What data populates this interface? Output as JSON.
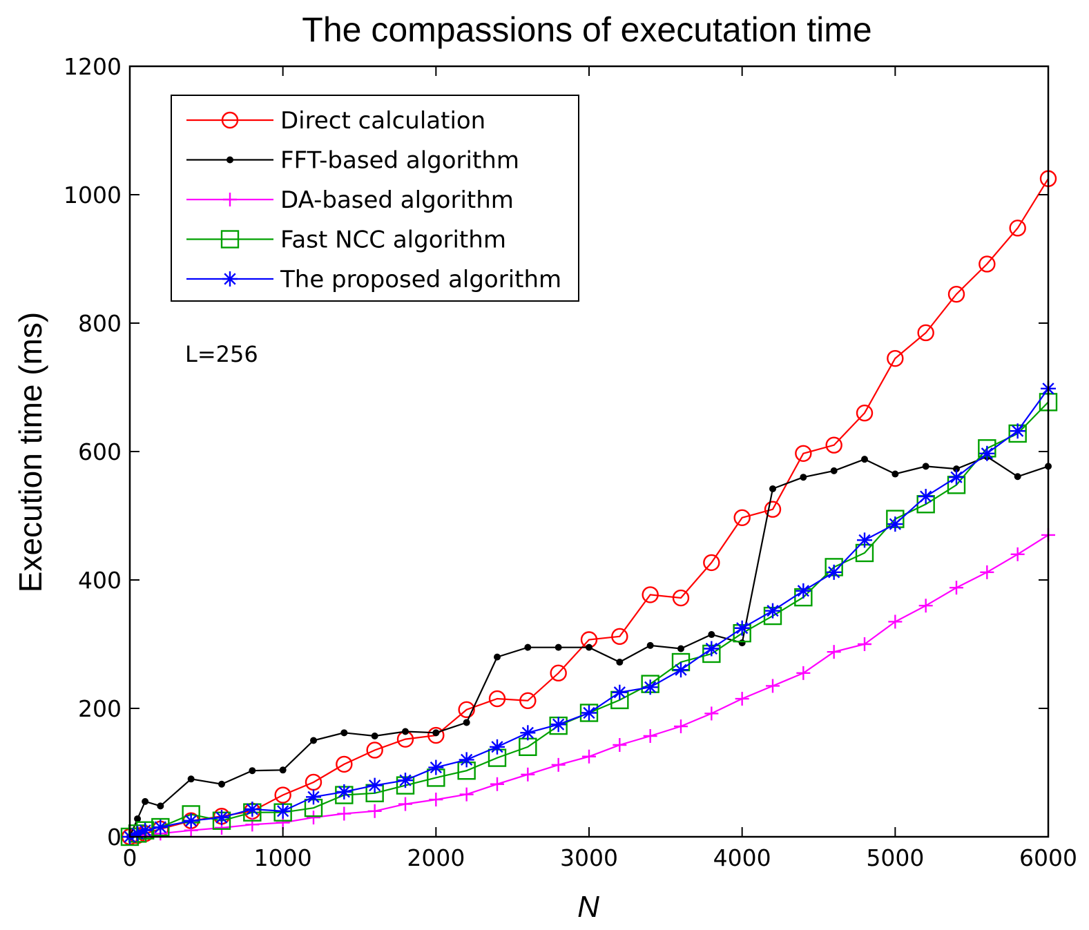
{
  "chart_data": {
    "type": "line",
    "title": "The compassions of executation time",
    "xlabel": "N",
    "ylabel": "Execution time (ms)",
    "xlim": [
      0,
      6000
    ],
    "ylim": [
      0,
      1200
    ],
    "xticks": [
      0,
      1000,
      2000,
      3000,
      4000,
      5000,
      6000
    ],
    "yticks": [
      0,
      200,
      400,
      600,
      800,
      1000,
      1200
    ],
    "grid": false,
    "legend_position": "top-left",
    "annotation": "L=256",
    "series": [
      {
        "name": "Direct calculation",
        "color": "#ff0000",
        "marker": "circle",
        "x": [
          0,
          50,
          100,
          200,
          400,
          600,
          800,
          1000,
          1200,
          1400,
          1600,
          1800,
          2000,
          2200,
          2400,
          2600,
          2800,
          3000,
          3200,
          3400,
          3600,
          3800,
          4000,
          4200,
          4400,
          4600,
          4800,
          5000,
          5200,
          5400,
          5600,
          5800,
          6000
        ],
        "y": [
          0,
          2,
          5,
          12,
          25,
          32,
          40,
          65,
          85,
          113,
          135,
          152,
          158,
          198,
          215,
          212,
          255,
          307,
          312,
          377,
          372,
          427,
          497,
          510,
          597,
          610,
          660,
          745,
          785,
          845,
          892,
          948,
          1025
        ]
      },
      {
        "name": "FFT-based algorithm",
        "color": "#000000",
        "marker": "dot",
        "x": [
          0,
          50,
          100,
          200,
          400,
          600,
          800,
          1000,
          1200,
          1400,
          1600,
          1800,
          2000,
          2200,
          2400,
          2600,
          2800,
          3000,
          3200,
          3400,
          3600,
          3800,
          4000,
          4200,
          4400,
          4600,
          4800,
          5000,
          5200,
          5400,
          5600,
          5800,
          6000
        ],
        "y": [
          0,
          28,
          55,
          48,
          90,
          82,
          103,
          104,
          150,
          162,
          157,
          164,
          162,
          178,
          280,
          295,
          295,
          295,
          272,
          298,
          293,
          315,
          302,
          542,
          560,
          570,
          588,
          565,
          577,
          573,
          592,
          561,
          577
        ]
      },
      {
        "name": "DA-based algorithm",
        "color": "#ff00ff",
        "marker": "plus",
        "x": [
          0,
          50,
          100,
          200,
          400,
          600,
          800,
          1000,
          1200,
          1400,
          1600,
          1800,
          2000,
          2200,
          2400,
          2600,
          2800,
          3000,
          3200,
          3400,
          3600,
          3800,
          4000,
          4200,
          4400,
          4600,
          4800,
          5000,
          5200,
          5400,
          5600,
          5800,
          6000
        ],
        "y": [
          0,
          1,
          2,
          5,
          10,
          14,
          19,
          22,
          30,
          36,
          40,
          51,
          58,
          66,
          82,
          97,
          112,
          125,
          143,
          157,
          172,
          192,
          215,
          235,
          255,
          288,
          300,
          335,
          360,
          388,
          412,
          440,
          470
        ]
      },
      {
        "name": "Fast NCC algorithm",
        "color": "#00a000",
        "marker": "square",
        "x": [
          0,
          50,
          100,
          200,
          400,
          600,
          800,
          1000,
          1200,
          1400,
          1600,
          1800,
          2000,
          2200,
          2400,
          2600,
          2800,
          3000,
          3200,
          3400,
          3600,
          3800,
          4000,
          4200,
          4400,
          4600,
          4800,
          5000,
          5200,
          5400,
          5600,
          5800,
          6000
        ],
        "y": [
          0,
          5,
          10,
          15,
          35,
          25,
          38,
          38,
          45,
          65,
          68,
          80,
          92,
          103,
          123,
          140,
          173,
          193,
          213,
          238,
          272,
          285,
          317,
          344,
          373,
          420,
          442,
          495,
          518,
          548,
          605,
          628,
          677
        ]
      },
      {
        "name": "The proposed algorithm",
        "color": "#0000ff",
        "marker": "star",
        "x": [
          0,
          50,
          100,
          200,
          400,
          600,
          800,
          1000,
          1200,
          1400,
          1600,
          1800,
          2000,
          2200,
          2400,
          2600,
          2800,
          3000,
          3200,
          3400,
          3600,
          3800,
          4000,
          4200,
          4400,
          4600,
          4800,
          5000,
          5200,
          5400,
          5600,
          5800,
          6000
        ],
        "y": [
          0,
          5,
          10,
          15,
          25,
          30,
          43,
          40,
          62,
          70,
          80,
          88,
          108,
          120,
          140,
          162,
          175,
          193,
          225,
          233,
          260,
          293,
          325,
          352,
          383,
          412,
          462,
          487,
          530,
          560,
          597,
          632,
          698
        ]
      }
    ]
  }
}
